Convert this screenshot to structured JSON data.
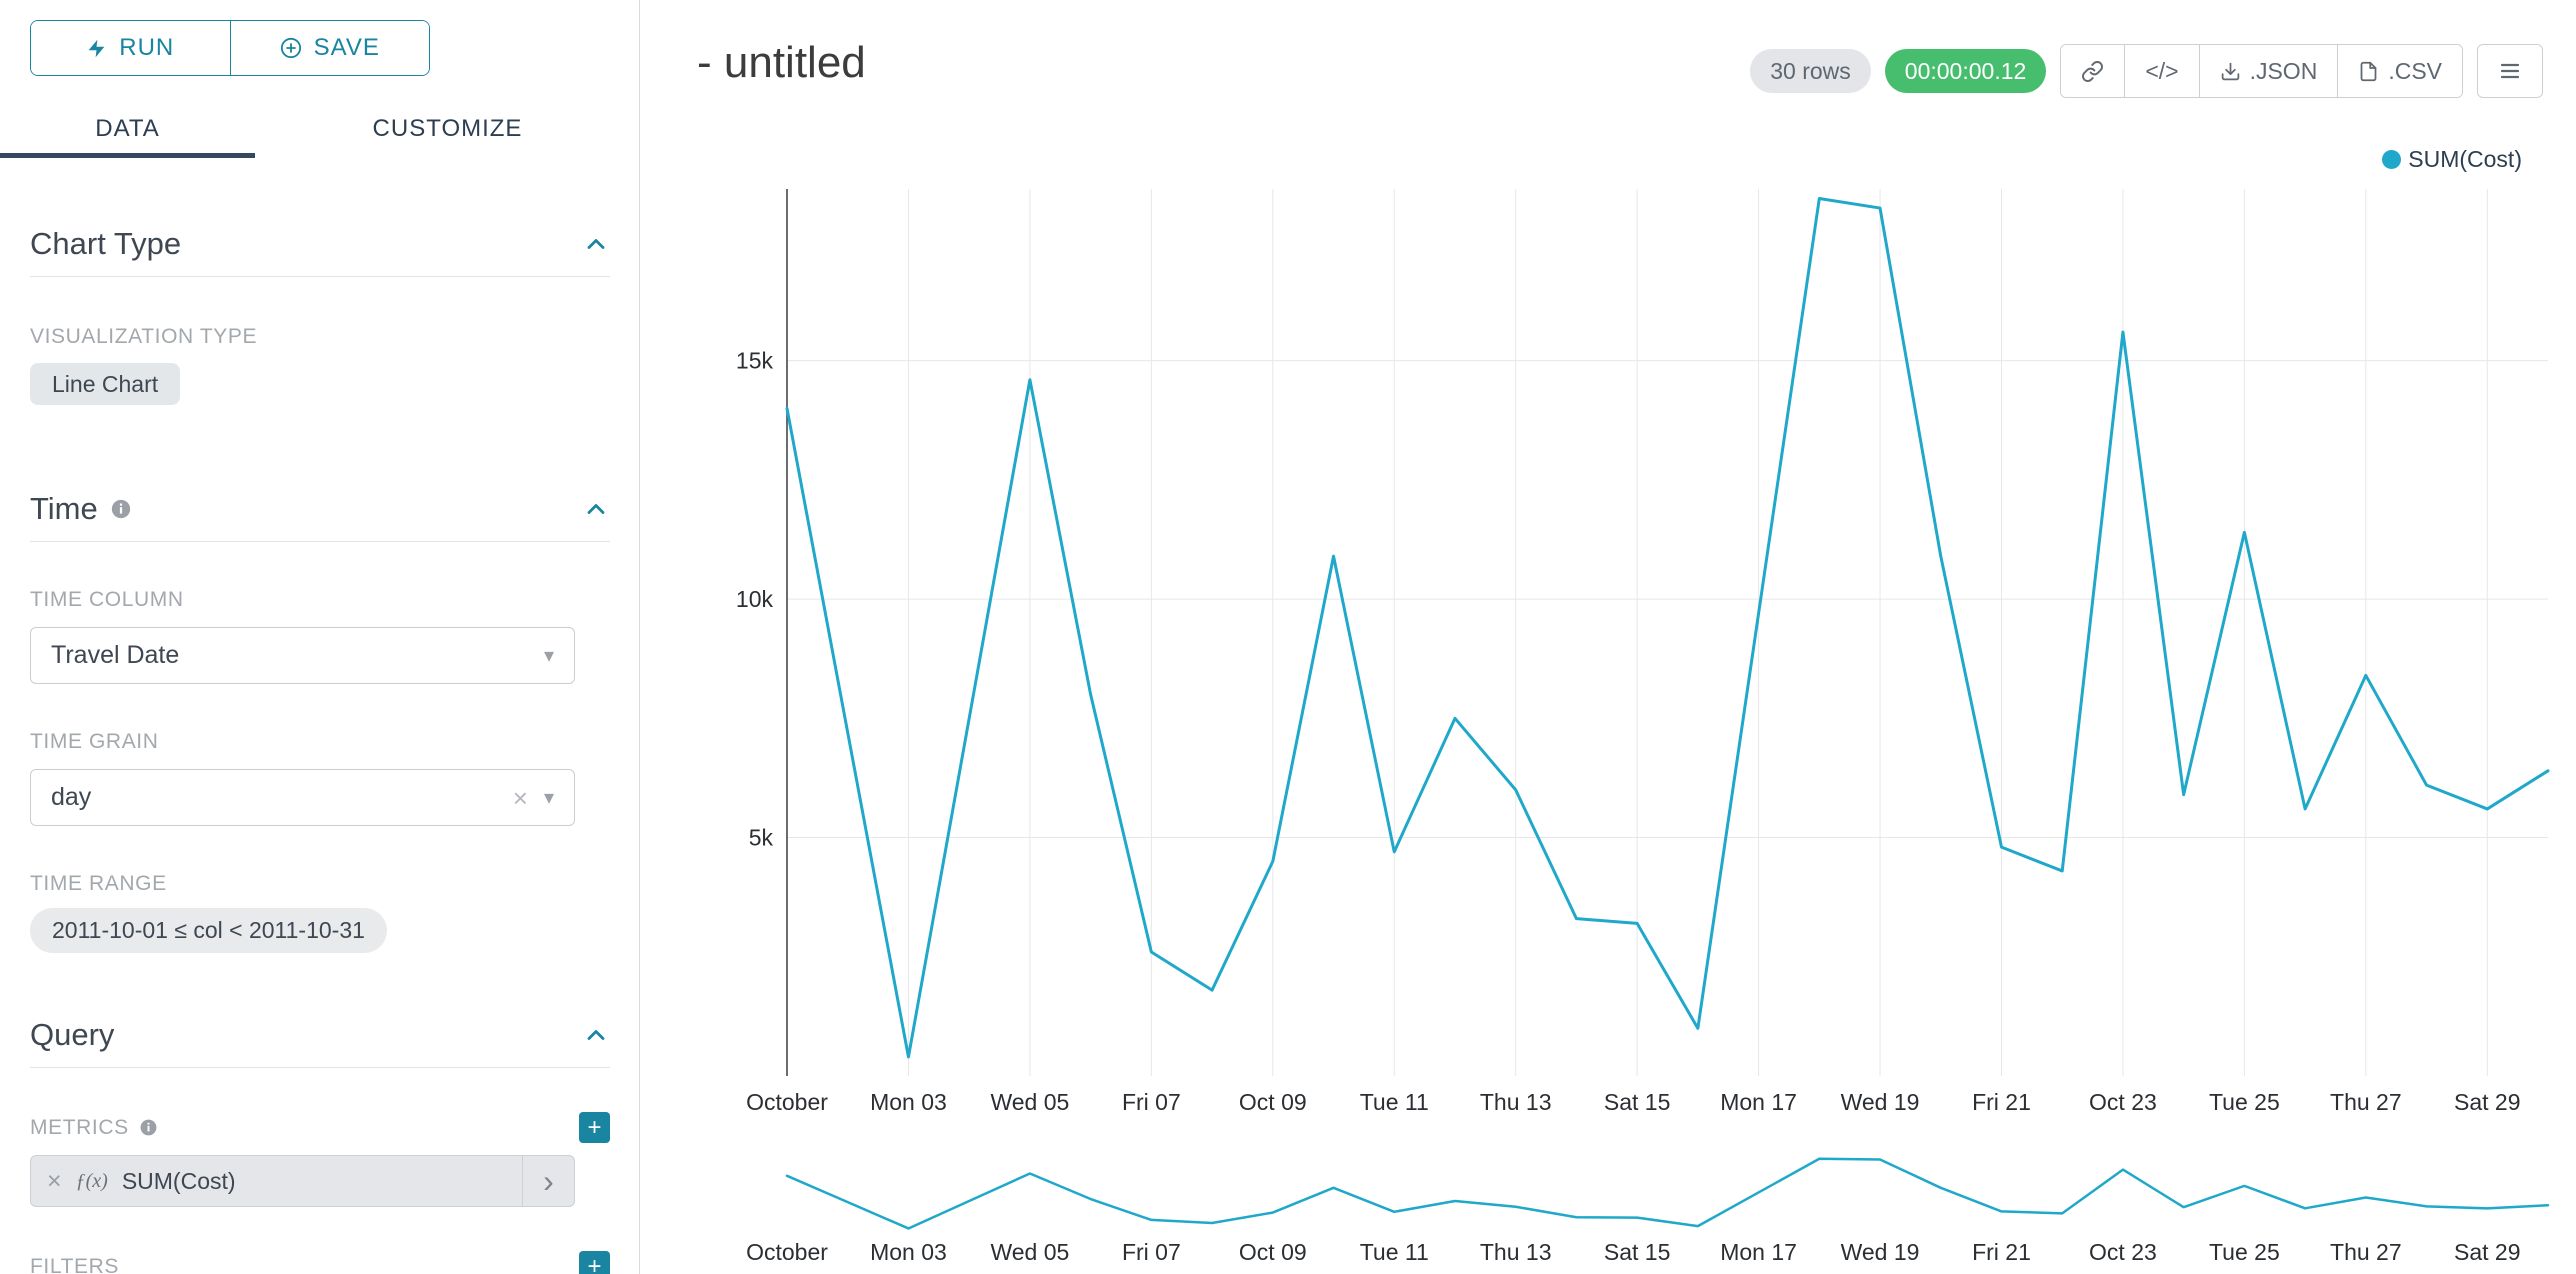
{
  "colors": {
    "accent": "#1985A0",
    "line": "#1FA8C9",
    "timer_bg": "#47BE6E",
    "tab_indicator": "#34495E"
  },
  "sidebar": {
    "run_label": "RUN",
    "save_label": "SAVE",
    "tabs": [
      {
        "label": "DATA",
        "active": true
      },
      {
        "label": "CUSTOMIZE",
        "active": false
      }
    ],
    "chart_type": {
      "title": "Chart Type",
      "viz_label": "VISUALIZATION TYPE",
      "viz_value": "Line Chart"
    },
    "time": {
      "title": "Time",
      "column_label": "TIME COLUMN",
      "column_value": "Travel Date",
      "grain_label": "TIME GRAIN",
      "grain_value": "day",
      "range_label": "TIME RANGE",
      "range_value": "2011-10-01 ≤ col < 2011-10-31"
    },
    "query": {
      "title": "Query",
      "metrics_label": "METRICS",
      "metric_fx": "ƒ(x)",
      "metric_name": "SUM(Cost)",
      "filters_label": "FILTERS"
    }
  },
  "header": {
    "title": "- untitled",
    "rows_badge": "30 rows",
    "timer": "00:00:00.12",
    "code_label": "</>",
    "json_label": ".JSON",
    "csv_label": ".CSV"
  },
  "legend": {
    "label": "SUM(Cost)"
  },
  "chart_data": {
    "type": "line",
    "title": "- untitled",
    "xlabel": "",
    "ylabel": "",
    "legend_position": "top-right",
    "grid": true,
    "has_mini_preview": true,
    "ylim": [
      0,
      18600
    ],
    "y_ticks": [
      {
        "value": 5000,
        "label": "5k"
      },
      {
        "value": 10000,
        "label": "10k"
      },
      {
        "value": 15000,
        "label": "15k"
      }
    ],
    "x_tick_labels": [
      "October",
      "Mon 03",
      "Wed 05",
      "Fri 07",
      "Oct 09",
      "Tue 11",
      "Thu 13",
      "Sat 15",
      "Mon 17",
      "Wed 19",
      "Fri 21",
      "Oct 23",
      "Tue 25",
      "Thu 27",
      "Sat 29"
    ],
    "x_tick_every": 2,
    "series": [
      {
        "name": "SUM(Cost)",
        "color": "#1FA8C9",
        "values": [
          14000,
          7200,
          400,
          7500,
          14600,
          8000,
          2600,
          1800,
          4500,
          10900,
          4700,
          7500,
          6000,
          3300,
          3200,
          1000,
          9700,
          18400,
          18200,
          10900,
          4800,
          4300,
          15600,
          5900,
          11400,
          5600,
          8400,
          6100,
          5600,
          6400
        ]
      }
    ]
  }
}
